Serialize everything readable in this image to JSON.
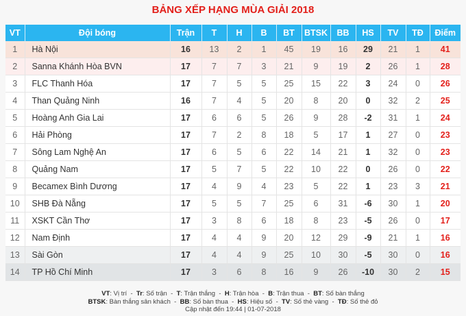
{
  "title": "BẢNG XẾP HẠNG MÙA GIẢI 2018",
  "colors": {
    "header": "#2bb5f0",
    "title": "#e3201b",
    "points": "#e3201b"
  },
  "columns": [
    "VT",
    "Đội bóng",
    "Trận",
    "T",
    "H",
    "B",
    "BT",
    "BTSK",
    "BB",
    "HS",
    "TV",
    "TĐ",
    "Điểm"
  ],
  "rows": [
    [
      "1",
      "Hà Nội",
      "16",
      "13",
      "2",
      "1",
      "45",
      "19",
      "16",
      "29",
      "21",
      "1",
      "41"
    ],
    [
      "2",
      "Sanna Khánh Hòa BVN",
      "17",
      "7",
      "7",
      "3",
      "21",
      "9",
      "19",
      "2",
      "26",
      "1",
      "28"
    ],
    [
      "3",
      "FLC Thanh Hóa",
      "17",
      "7",
      "5",
      "5",
      "25",
      "15",
      "22",
      "3",
      "24",
      "0",
      "26"
    ],
    [
      "4",
      "Than Quảng Ninh",
      "16",
      "7",
      "4",
      "5",
      "20",
      "8",
      "20",
      "0",
      "32",
      "2",
      "25"
    ],
    [
      "5",
      "Hoàng Anh Gia Lai",
      "17",
      "6",
      "6",
      "5",
      "26",
      "9",
      "28",
      "-2",
      "31",
      "1",
      "24"
    ],
    [
      "6",
      "Hải Phòng",
      "17",
      "7",
      "2",
      "8",
      "18",
      "5",
      "17",
      "1",
      "27",
      "0",
      "23"
    ],
    [
      "7",
      "Sông Lam Nghệ An",
      "17",
      "6",
      "5",
      "6",
      "22",
      "14",
      "21",
      "1",
      "32",
      "0",
      "23"
    ],
    [
      "8",
      "Quảng Nam",
      "17",
      "5",
      "7",
      "5",
      "22",
      "10",
      "22",
      "0",
      "26",
      "0",
      "22"
    ],
    [
      "9",
      "Becamex Bình Dương",
      "17",
      "4",
      "9",
      "4",
      "23",
      "5",
      "22",
      "1",
      "23",
      "3",
      "21"
    ],
    [
      "10",
      "SHB Đà Nẵng",
      "17",
      "5",
      "5",
      "7",
      "25",
      "6",
      "31",
      "-6",
      "30",
      "1",
      "20"
    ],
    [
      "11",
      "XSKT Cần Thơ",
      "17",
      "3",
      "8",
      "6",
      "18",
      "8",
      "23",
      "-5",
      "26",
      "0",
      "17"
    ],
    [
      "12",
      "Nam Định",
      "17",
      "4",
      "4",
      "9",
      "20",
      "12",
      "29",
      "-9",
      "21",
      "1",
      "16"
    ],
    [
      "13",
      "Sài Gòn",
      "17",
      "4",
      "4",
      "9",
      "25",
      "10",
      "30",
      "-5",
      "30",
      "0",
      "16"
    ],
    [
      "14",
      "TP Hồ Chí Minh",
      "17",
      "3",
      "6",
      "8",
      "16",
      "9",
      "26",
      "-10",
      "30",
      "2",
      "15"
    ]
  ],
  "legend": {
    "line1": [
      {
        "k": "VT",
        "v": ": Vị trí"
      },
      {
        "k": "Tr",
        "v": ": Số trận"
      },
      {
        "k": "T",
        "v": ": Trận thắng"
      },
      {
        "k": "H",
        "v": ": Trận hòa"
      },
      {
        "k": "B",
        "v": ": Trận thua"
      },
      {
        "k": "BT",
        "v": ": Số bàn thắng"
      }
    ],
    "line2": [
      {
        "k": "BTSK",
        "v": ": Bàn thắng sân khách"
      },
      {
        "k": "BB",
        "v": ": Số bàn thua"
      },
      {
        "k": "HS",
        "v": ": Hiệu số"
      },
      {
        "k": "TV",
        "v": ": Số thẻ vàng"
      },
      {
        "k": "TĐ",
        "v": ": Số thẻ đỏ"
      }
    ],
    "updated": "Cập nhật đến 19:44 | 01-07-2018"
  }
}
